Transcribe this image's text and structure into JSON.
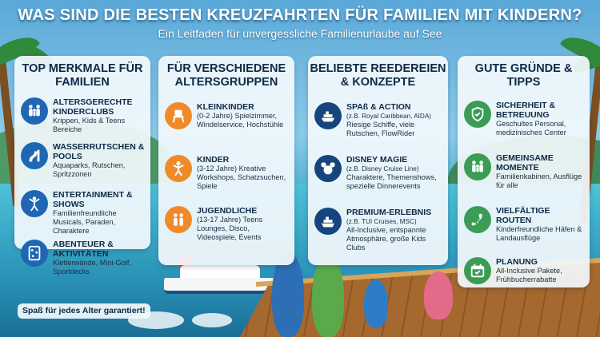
{
  "header": {
    "title": "WAS SIND DIE BESTEN KREUZFAHRTEN FÜR FAMILIEN MIT KINDERN?",
    "subtitle": "Ein Leitfaden für unvergessliche Familienurlaube auf See"
  },
  "panels": [
    {
      "title": "TOP MERKMALE FÜR FAMILIEN",
      "items": [
        {
          "icon": "family-icon",
          "title": "ALTERSGERECHTE KINDERCLUBS",
          "text": "Krippen, Kids & Teens Bereiche"
        },
        {
          "icon": "waterslide-icon",
          "title": "WASSERRUTSCHEN & POOLS",
          "text": "Aquaparks, Rutschen, Spritzzonen"
        },
        {
          "icon": "show-icon",
          "title": "ENTERTAINMENT & SHOWS",
          "text": "Familienfreundliche Musicals, Paraden, Charaktere"
        },
        {
          "icon": "climbing-icon",
          "title": "ABENTEUER & AKTIVITÄTEN",
          "text": "Kletterwände, Mini-Golf, Sportdecks"
        }
      ]
    },
    {
      "title": "FÜR VERSCHIEDENE ALTERSGRUPPEN",
      "items": [
        {
          "icon": "highchair-icon",
          "title": "KLEINKINDER",
          "text": "(0-2 Jahre) Spielzimmer, Windelservice, Hochstühle"
        },
        {
          "icon": "child-icon",
          "title": "KINDER",
          "text": "(3-12 Jahre) Kreative Workshops, Schatzsuchen, Spiele"
        },
        {
          "icon": "teens-icon",
          "title": "JUGENDLICHE",
          "text": "(13-17 Jahre) Teens Lounges, Disco, Videospiele, Events"
        }
      ]
    },
    {
      "title": "BELIEBTE REEDEREIEN & KONZEPTE",
      "items": [
        {
          "icon": "ship-icon",
          "title": "SPAß & ACTION",
          "note": "(z.B. Royal Caribbean, AIDA)",
          "text": "Riesige Schiffe, viele Rutschen, FlowRider"
        },
        {
          "icon": "mouse-ears-icon",
          "title": "DISNEY MAGIE",
          "note": "(z.B. Disney Cruise Line)",
          "text": "Charaktere, Themenshows, spezielle Dinnerevents"
        },
        {
          "icon": "ship-icon",
          "title": "PREMIUM-ERLEBNIS",
          "note": "(z.B. TUI Cruises, MSC)",
          "text": "All-Inclusive, entspannte Atmosphäre, große Kids Clubs"
        }
      ]
    },
    {
      "title": "GUTE GRÜNDE & TIPPS",
      "items": [
        {
          "icon": "shield-check-icon",
          "title": "SICHERHEIT & BETREUUNG",
          "text": "Geschultes Personal, medizinisches Center"
        },
        {
          "icon": "family-icon",
          "title": "GEMEINSAME MOMENTE",
          "text": "Familienkabinen, Ausflüge für alle"
        },
        {
          "icon": "route-icon",
          "title": "VIELFÄLTIGE ROUTEN",
          "text": "Kinderfreundliche Häfen & Landausflüge"
        },
        {
          "icon": "calendar-icon",
          "title": "PLANUNG",
          "text": "All-Inclusive Pakete, Frühbucherrabatte"
        }
      ]
    }
  ],
  "tagline": "Spaß für jedes Alter garantiert!",
  "colors": {
    "blue": "#1f67b3",
    "orange": "#f08a28",
    "navy": "#16457e",
    "green": "#3b9c55"
  }
}
